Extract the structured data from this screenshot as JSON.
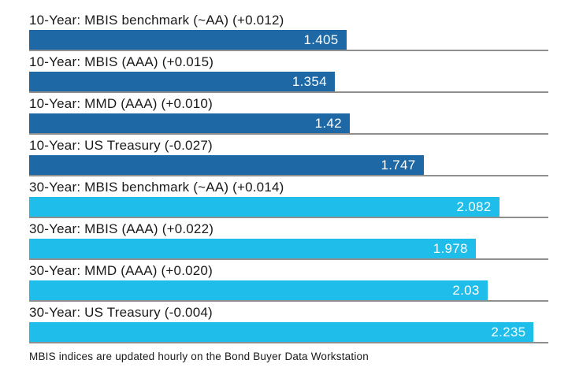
{
  "chart_data": {
    "type": "bar",
    "orientation": "horizontal",
    "title": "",
    "xlabel": "",
    "ylabel": "",
    "xlim": [
      0,
      2.3
    ],
    "grid": false,
    "legend": "none",
    "bars": [
      {
        "label": "10-Year: MBIS benchmark (~AA) (+0.012)",
        "value": 1.405,
        "display_value": "1.405",
        "change": "+0.012",
        "group": "10-Year",
        "color": "#1e69a5"
      },
      {
        "label": "10-Year: MBIS (AAA) (+0.015)",
        "value": 1.354,
        "display_value": "1.354",
        "change": "+0.015",
        "group": "10-Year",
        "color": "#1e69a5"
      },
      {
        "label": "10-Year: MMD (AAA) (+0.010)",
        "value": 1.42,
        "display_value": "1.42",
        "change": "+0.010",
        "group": "10-Year",
        "color": "#1e69a5"
      },
      {
        "label": "10-Year: US Treasury (-0.027)",
        "value": 1.747,
        "display_value": "1.747",
        "change": "-0.027",
        "group": "10-Year",
        "color": "#1e69a5"
      },
      {
        "label": "30-Year: MBIS benchmark (~AA) (+0.014)",
        "value": 2.082,
        "display_value": "2.082",
        "change": "+0.014",
        "group": "30-Year",
        "color": "#1fbde9"
      },
      {
        "label": "30-Year: MBIS (AAA) (+0.022)",
        "value": 1.978,
        "display_value": "1.978",
        "change": "+0.022",
        "group": "30-Year",
        "color": "#1fbde9"
      },
      {
        "label": "30-Year: MMD (AAA) (+0.020)",
        "value": 2.03,
        "display_value": "2.03",
        "change": "+0.020",
        "group": "30-Year",
        "color": "#1fbde9"
      },
      {
        "label": "30-Year: US Treasury (-0.004)",
        "value": 2.235,
        "display_value": "2.235",
        "change": "-0.004",
        "group": "30-Year",
        "color": "#1fbde9"
      }
    ],
    "footnote": "MBIS indices are updated hourly on the Bond Buyer Data Workstation"
  },
  "colors": {
    "bar_10_year": "#1e69a5",
    "bar_30_year": "#1fbde9",
    "divider": "#8f8f8f",
    "label_text": "#1a1a1a",
    "value_text": "#ffffff",
    "background": "#ffffff"
  }
}
